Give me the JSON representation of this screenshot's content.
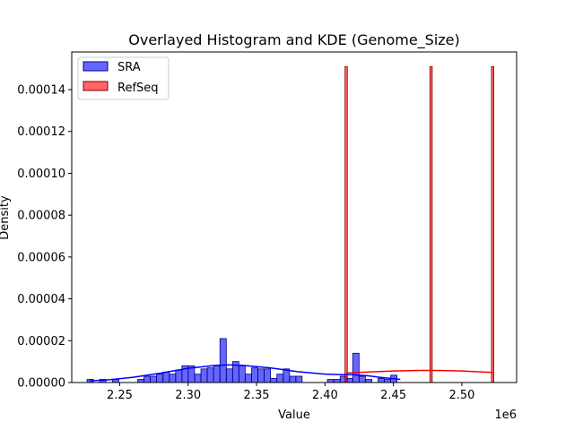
{
  "chart_data": {
    "type": "histogram",
    "title": "Overlayed Histogram and KDE (Genome_Size)",
    "xlabel": "Value",
    "ylabel": "Density",
    "x_offset_label": "1e6",
    "xlim": [
      2.215,
      2.54
    ],
    "ylim": [
      0,
      0.000158
    ],
    "x_ticks": [
      2.25,
      2.3,
      2.35,
      2.4,
      2.45,
      2.5
    ],
    "x_tick_labels": [
      "2.25",
      "2.30",
      "2.35",
      "2.40",
      "2.45",
      "2.50"
    ],
    "y_ticks": [
      0,
      2e-05,
      4e-05,
      6e-05,
      8e-05,
      0.0001,
      0.00012,
      0.00014
    ],
    "y_tick_labels": [
      "0.00000",
      "0.00002",
      "0.00004",
      "0.00006",
      "0.00008",
      "0.00010",
      "0.00012",
      "0.00014"
    ],
    "legend": {
      "position": "upper left"
    },
    "series": [
      {
        "name": "SRA",
        "fill": "#0000ff",
        "edge": "#000080",
        "bin_width": 0.00462,
        "bars": [
          {
            "x": 2.2285,
            "y": 1.5e-06
          },
          {
            "x": 2.2377,
            "y": 1.5e-06
          },
          {
            "x": 2.247,
            "y": 1.5e-06
          },
          {
            "x": 2.2655,
            "y": 1.5e-06
          },
          {
            "x": 2.2701,
            "y": 3e-06
          },
          {
            "x": 2.2747,
            "y": 3e-06
          },
          {
            "x": 2.2793,
            "y": 4e-06
          },
          {
            "x": 2.284,
            "y": 5e-06
          },
          {
            "x": 2.2886,
            "y": 4e-06
          },
          {
            "x": 2.2932,
            "y": 6e-06
          },
          {
            "x": 2.2978,
            "y": 8e-06
          },
          {
            "x": 2.3024,
            "y": 8e-06
          },
          {
            "x": 2.3071,
            "y": 4e-06
          },
          {
            "x": 2.3117,
            "y": 6.5e-06
          },
          {
            "x": 2.3163,
            "y": 7e-06
          },
          {
            "x": 2.3209,
            "y": 8e-06
          },
          {
            "x": 2.3256,
            "y": 2.1e-05
          },
          {
            "x": 2.3302,
            "y": 6.5e-06
          },
          {
            "x": 2.3348,
            "y": 1e-05
          },
          {
            "x": 2.3394,
            "y": 8e-06
          },
          {
            "x": 2.344,
            "y": 4e-06
          },
          {
            "x": 2.3487,
            "y": 7e-06
          },
          {
            "x": 2.3533,
            "y": 6.5e-06
          },
          {
            "x": 2.3579,
            "y": 6.5e-06
          },
          {
            "x": 2.3625,
            "y": 2e-06
          },
          {
            "x": 2.3672,
            "y": 4e-06
          },
          {
            "x": 2.3718,
            "y": 6.5e-06
          },
          {
            "x": 2.3764,
            "y": 3e-06
          },
          {
            "x": 2.381,
            "y": 3e-06
          },
          {
            "x": 2.4041,
            "y": 1.5e-06
          },
          {
            "x": 2.4088,
            "y": 1.5e-06
          },
          {
            "x": 2.4134,
            "y": 3e-06
          },
          {
            "x": 2.418,
            "y": 2e-06
          },
          {
            "x": 2.4226,
            "y": 1.4e-05
          },
          {
            "x": 2.4272,
            "y": 3e-06
          },
          {
            "x": 2.4319,
            "y": 1.5e-06
          },
          {
            "x": 2.4411,
            "y": 2e-06
          },
          {
            "x": 2.4457,
            "y": 1.5e-06
          },
          {
            "x": 2.4503,
            "y": 3.5e-06
          }
        ],
        "kde": {
          "color": "#0000ff",
          "x": [
            2.228,
            2.24,
            2.26,
            2.28,
            2.3,
            2.32,
            2.33,
            2.34,
            2.36,
            2.38,
            2.4,
            2.41,
            2.42,
            2.43,
            2.44,
            2.455
          ],
          "y": [
            8e-07,
            1.2e-06,
            2.5e-06,
            4.5e-06,
            6.8e-06,
            8.2e-06,
            8.4e-06,
            8.2e-06,
            7e-06,
            5.2e-06,
            4e-06,
            3.8e-06,
            3.7e-06,
            3.3e-06,
            2.5e-06,
            1.5e-06
          ]
        }
      },
      {
        "name": "RefSeq",
        "fill": "#ff0000",
        "edge": "#800000",
        "bin_width": 0.0017,
        "bars": [
          {
            "x": 2.4155,
            "y": 0.000151
          },
          {
            "x": 2.4775,
            "y": 0.000151
          },
          {
            "x": 2.5225,
            "y": 0.000151
          }
        ],
        "kde": {
          "color": "#ff0000",
          "x": [
            2.4155,
            2.43,
            2.45,
            2.47,
            2.48,
            2.49,
            2.5,
            2.51,
            2.5225
          ],
          "y": [
            4.5e-06,
            5e-06,
            5.5e-06,
            5.8e-06,
            5.8e-06,
            5.7e-06,
            5.5e-06,
            5.2e-06,
            4.8e-06
          ]
        }
      }
    ]
  }
}
